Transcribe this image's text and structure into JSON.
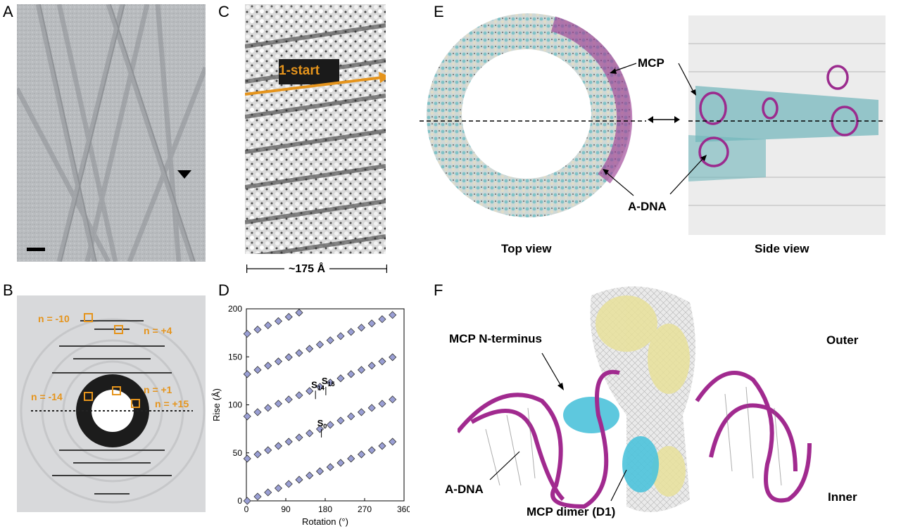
{
  "panels": {
    "a": {
      "letter": "A"
    },
    "b": {
      "letter": "B",
      "layer_lines": [
        "n = -10",
        "n = +4",
        "n = -14",
        "n = +1",
        "n = +15"
      ]
    },
    "c": {
      "letter": "C",
      "helix_label": "1-start",
      "width_label": "~175 Å"
    },
    "d": {
      "letter": "D"
    },
    "e": {
      "letter": "E",
      "mcp_label": "MCP",
      "adna_label": "A-DNA",
      "top_view": "Top view",
      "side_view": "Side view"
    },
    "f": {
      "letter": "F",
      "nterm_label": "MCP N-terminus",
      "outer_label": "Outer",
      "adna_label": "A-DNA",
      "dimer_label": "MCP dimer (D1)",
      "inner_label": "Inner"
    }
  },
  "chart_data": {
    "type": "scatter",
    "xlabel": "Rotation (°)",
    "ylabel": "Rise (Å)",
    "xlim": [
      0,
      360
    ],
    "ylim": [
      0,
      200
    ],
    "xticks": [
      0,
      90,
      180,
      270,
      360
    ],
    "yticks": [
      0,
      50,
      100,
      150,
      200
    ],
    "marker_color": "#9a9fd4",
    "annotations": [
      {
        "label": "S",
        "sub": "14",
        "x": 157.8,
        "y": 106
      },
      {
        "label": "S",
        "sub": "15",
        "x": 181.4,
        "y": 110
      },
      {
        "label": "S",
        "sub": "0",
        "x": 171.3,
        "y": 66
      }
    ],
    "series": [
      {
        "values": [
          [
            2,
            0
          ],
          [
            25.7,
            4.4
          ],
          [
            49.4,
            8.8
          ],
          [
            73.1,
            13.2
          ],
          [
            96.8,
            17.6
          ],
          [
            120.5,
            22
          ],
          [
            144.2,
            26.4
          ],
          [
            167.9,
            30.8
          ],
          [
            191.6,
            35.2
          ],
          [
            215.3,
            39.6
          ],
          [
            239,
            44
          ],
          [
            262.7,
            48.4
          ],
          [
            286.4,
            52.8
          ],
          [
            310.1,
            57.2
          ],
          [
            333.8,
            61.6
          ]
        ]
      }
    ]
  }
}
